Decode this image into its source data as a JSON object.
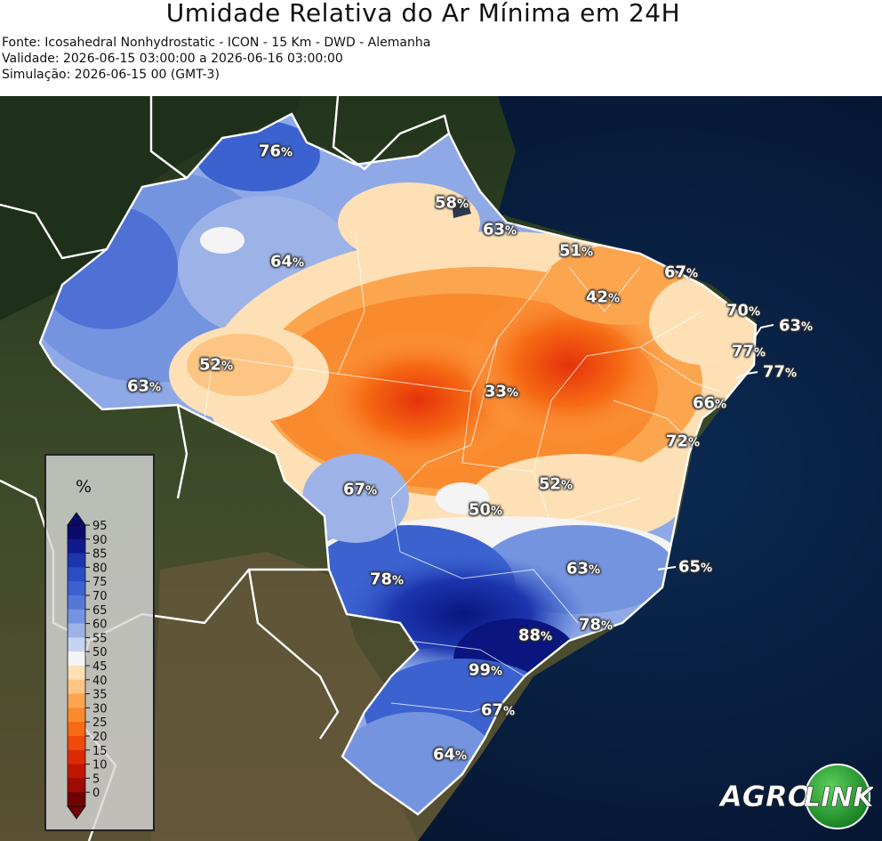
{
  "header": {
    "title": "Umidade Relativa do Ar Mínima em 24H",
    "source": "Fonte: Icosahedral Nonhydrostatic - ICON - 15 Km - DWD - Alemanha",
    "validity": "Validade: 2026-06-15 03:00:00 a 2026-06-16 03:00:00",
    "simulation": "Simulação: 2026-06-15 00 (GMT-3)"
  },
  "legend": {
    "unit": "%",
    "ticks": [
      "95",
      "90",
      "85",
      "80",
      "75",
      "70",
      "65",
      "60",
      "55",
      "50",
      "45",
      "40",
      "35",
      "30",
      "25",
      "20",
      "15",
      "10",
      "5",
      "0"
    ],
    "colors": [
      "#0a0a6b",
      "#101a8e",
      "#1c35ad",
      "#2a4dc4",
      "#3b62cf",
      "#5577d8",
      "#7594df",
      "#9db3e8",
      "#c6d4f1",
      "#f4f4f4",
      "#fde0b6",
      "#fdc583",
      "#fca54f",
      "#fa8a2e",
      "#f66a14",
      "#ee4a0a",
      "#dd2a05",
      "#c11504",
      "#9e0a04",
      "#700303"
    ]
  },
  "labels": [
    {
      "id": "amapa-north",
      "value": "76",
      "unit": "%"
    },
    {
      "id": "para-north",
      "value": "58",
      "unit": "%"
    },
    {
      "id": "maranhao-north",
      "value": "63",
      "unit": "%"
    },
    {
      "id": "ceara-west",
      "value": "51",
      "unit": "%"
    },
    {
      "id": "rn-north",
      "value": "67",
      "unit": "%"
    },
    {
      "id": "piaui",
      "value": "42",
      "unit": "%"
    },
    {
      "id": "pb-coast",
      "value": "70",
      "unit": "%"
    },
    {
      "id": "rn-coast",
      "value": "63",
      "unit": "%"
    },
    {
      "id": "pe-coast",
      "value": "77",
      "unit": "%"
    },
    {
      "id": "al-coast",
      "value": "77",
      "unit": "%"
    },
    {
      "id": "amazonas-center",
      "value": "64",
      "unit": "%"
    },
    {
      "id": "rondonia-west",
      "value": "52",
      "unit": "%"
    },
    {
      "id": "acre",
      "value": "63",
      "unit": "%"
    },
    {
      "id": "tocantins",
      "value": "33",
      "unit": "%"
    },
    {
      "id": "sergipe",
      "value": "66",
      "unit": "%"
    },
    {
      "id": "bahia-coast",
      "value": "72",
      "unit": "%"
    },
    {
      "id": "goias-east",
      "value": "52",
      "unit": "%"
    },
    {
      "id": "mato-grosso-south",
      "value": "67",
      "unit": "%"
    },
    {
      "id": "goias-south",
      "value": "50",
      "unit": "%"
    },
    {
      "id": "minas",
      "value": "63",
      "unit": "%"
    },
    {
      "id": "espirito-santo",
      "value": "65",
      "unit": "%"
    },
    {
      "id": "ms",
      "value": "78",
      "unit": "%"
    },
    {
      "id": "sao-paulo",
      "value": "88",
      "unit": "%"
    },
    {
      "id": "rio",
      "value": "78",
      "unit": "%"
    },
    {
      "id": "parana",
      "value": "99",
      "unit": "%"
    },
    {
      "id": "santa-catarina",
      "value": "67",
      "unit": "%"
    },
    {
      "id": "rs",
      "value": "64",
      "unit": "%"
    }
  ],
  "logo": {
    "text_left": "AGRO",
    "text_right": "LINK"
  }
}
